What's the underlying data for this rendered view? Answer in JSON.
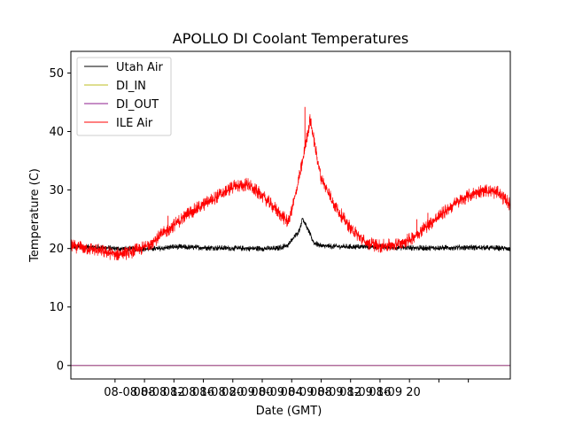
{
  "chart_data": {
    "type": "line",
    "title": "APOLLO DI Coolant Temperatures",
    "xlabel": "Date (GMT)",
    "ylabel": "Temperature (C)",
    "xlim_hours": [
      0,
      59.7
    ],
    "ylim": [
      -2.3,
      53.7
    ],
    "grid": false,
    "legend_position": "top-left",
    "y_ticks": [
      0,
      10,
      20,
      30,
      40,
      50
    ],
    "x_tick_hours": [
      6,
      10,
      14,
      18,
      22,
      26,
      30,
      34,
      38,
      42,
      46,
      50,
      54
    ],
    "x_tick_labels": [
      "08-08 08",
      "08-08 12",
      "08-08 16",
      "08-08 20",
      "08-09 00",
      "08-09 04",
      "08-09 08",
      "08-09 12",
      "08-09 16",
      "08-09 20"
    ],
    "x_tick_label_hours": [
      8,
      12,
      16,
      20,
      24,
      28,
      32,
      36,
      40,
      44
    ],
    "series": [
      {
        "name": "Utah Air",
        "color": "#000000",
        "noise": 0.5,
        "x": [
          0,
          4,
          6,
          10,
          12,
          14,
          16,
          20,
          24,
          28,
          29.5,
          31,
          31.5,
          33,
          34,
          38,
          42,
          46,
          50,
          54,
          59.7
        ],
        "y": [
          20.3,
          20.2,
          20.0,
          19.9,
          20.0,
          20.3,
          20.2,
          20.1,
          20.0,
          20.0,
          20.6,
          23.0,
          25.2,
          21.0,
          20.4,
          20.3,
          20.3,
          20.1,
          20.1,
          20.2,
          20.0
        ]
      },
      {
        "name": "DI_IN",
        "color": "#bcbd22",
        "noise": 0,
        "x": [
          0,
          59.7
        ],
        "y": [
          0,
          0
        ]
      },
      {
        "name": "DI_OUT",
        "color": "#8c1c8c",
        "noise": 0,
        "x": [
          0,
          59.7
        ],
        "y": [
          0,
          0
        ]
      },
      {
        "name": "ILE Air",
        "color": "#ff0000",
        "noise": 1.2,
        "x": [
          0,
          1,
          2,
          4,
          6,
          8,
          10,
          12,
          14,
          16,
          18,
          20,
          22,
          24,
          26,
          28,
          29.5,
          30.5,
          31.5,
          32.5,
          34,
          36,
          38,
          40,
          42,
          44,
          46,
          48,
          50,
          52,
          54,
          56,
          58,
          59.7
        ],
        "y": [
          20.4,
          20.3,
          20.1,
          19.6,
          19.0,
          19.3,
          20.2,
          22.0,
          24.0,
          26.0,
          27.5,
          29.0,
          30.5,
          31.0,
          29.0,
          26.5,
          24.5,
          29.0,
          35.0,
          42.0,
          32.0,
          27.0,
          23.5,
          21.0,
          20.4,
          20.6,
          21.5,
          23.5,
          25.5,
          27.5,
          29.0,
          30.0,
          29.5,
          27.5
        ]
      }
    ],
    "spikes": [
      {
        "x": 1.3,
        "y": 21.3,
        "series": "ILE Air"
      },
      {
        "x": 13.2,
        "y": 25.6,
        "series": "ILE Air"
      },
      {
        "x": 27.0,
        "y": 27.0,
        "series": "ILE Air"
      },
      {
        "x": 28.8,
        "y": 26.0,
        "series": "ILE Air"
      },
      {
        "x": 31.8,
        "y": 44.2,
        "series": "ILE Air"
      },
      {
        "x": 37.5,
        "y": 25.0,
        "series": "ILE Air"
      },
      {
        "x": 47.0,
        "y": 25.0,
        "series": "ILE Air"
      },
      {
        "x": 48.5,
        "y": 26.1,
        "series": "ILE Air"
      }
    ]
  }
}
